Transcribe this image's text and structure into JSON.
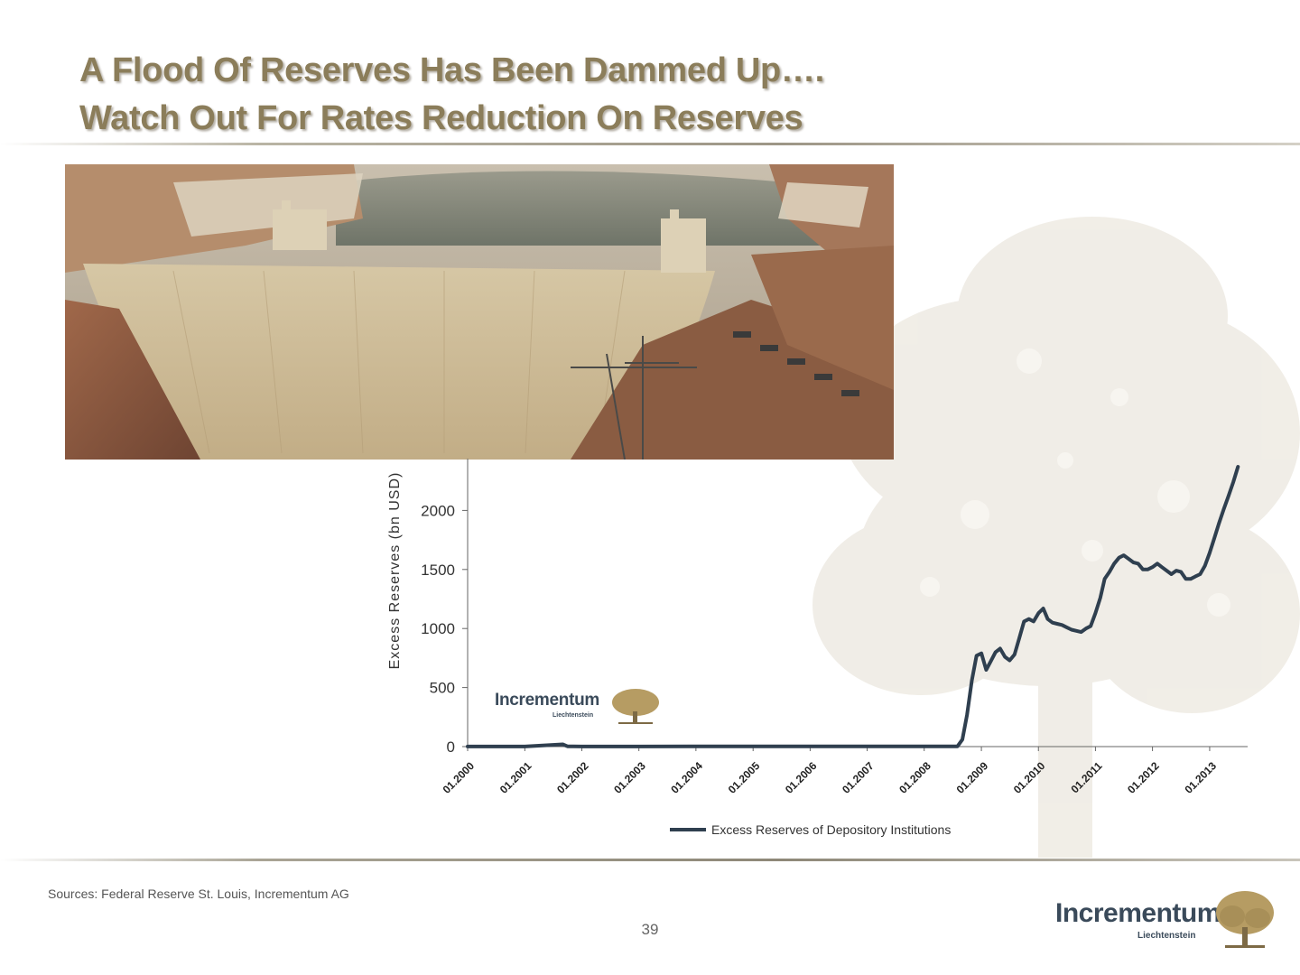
{
  "slide": {
    "title_line1": "A Flood Of Reserves Has Been Dammed Up….",
    "title_line2": "Watch Out For Rates Reduction On Reserves",
    "source": "Sources: Federal Reserve St. Louis, Incrementum AG",
    "page_number": "39"
  },
  "logo": {
    "word": "Incrementum",
    "sub": "Liechtenstein"
  },
  "chart_logo": {
    "word": "Incrementum",
    "sub": "Liechtenstein"
  },
  "colors": {
    "title": "#8b7d5a",
    "series": "#2f3f4f",
    "axis": "#333333"
  },
  "chart_data": {
    "type": "line",
    "title": "",
    "ylabel": "Excess Reserves (bn USD)",
    "xlabel": "",
    "ylim": [
      0,
      2500
    ],
    "yticks": [
      0,
      500,
      1000,
      1500,
      2000
    ],
    "x_tick_labels": [
      "01.2000",
      "01.2001",
      "01.2002",
      "01.2003",
      "01.2004",
      "01.2005",
      "01.2006",
      "01.2007",
      "01.2008",
      "01.2009",
      "01.2010",
      "01.2011",
      "01.2012",
      "01.2013"
    ],
    "legend_position": "bottom",
    "series": [
      {
        "name": "Excess Reserves of Depository Institutions",
        "points": [
          [
            "2000-01",
            1
          ],
          [
            "2001-01",
            1
          ],
          [
            "2001-09",
            19
          ],
          [
            "2001-10",
            2
          ],
          [
            "2002-01",
            1
          ],
          [
            "2003-01",
            1
          ],
          [
            "2004-01",
            2
          ],
          [
            "2005-01",
            2
          ],
          [
            "2006-01",
            2
          ],
          [
            "2007-01",
            2
          ],
          [
            "2008-01",
            2
          ],
          [
            "2008-08",
            2
          ],
          [
            "2008-09",
            60
          ],
          [
            "2008-10",
            270
          ],
          [
            "2008-11",
            560
          ],
          [
            "2008-12",
            770
          ],
          [
            "2009-01",
            790
          ],
          [
            "2009-02",
            650
          ],
          [
            "2009-03",
            720
          ],
          [
            "2009-04",
            800
          ],
          [
            "2009-05",
            830
          ],
          [
            "2009-06",
            760
          ],
          [
            "2009-07",
            730
          ],
          [
            "2009-08",
            780
          ],
          [
            "2009-09",
            920
          ],
          [
            "2009-10",
            1060
          ],
          [
            "2009-11",
            1080
          ],
          [
            "2009-12",
            1060
          ],
          [
            "2010-01",
            1130
          ],
          [
            "2010-02",
            1170
          ],
          [
            "2010-03",
            1080
          ],
          [
            "2010-04",
            1050
          ],
          [
            "2010-05",
            1040
          ],
          [
            "2010-06",
            1030
          ],
          [
            "2010-07",
            1010
          ],
          [
            "2010-08",
            990
          ],
          [
            "2010-09",
            980
          ],
          [
            "2010-10",
            970
          ],
          [
            "2010-11",
            1000
          ],
          [
            "2010-12",
            1020
          ],
          [
            "2011-01",
            1130
          ],
          [
            "2011-02",
            1260
          ],
          [
            "2011-03",
            1420
          ],
          [
            "2011-04",
            1480
          ],
          [
            "2011-05",
            1550
          ],
          [
            "2011-06",
            1600
          ],
          [
            "2011-07",
            1620
          ],
          [
            "2011-08",
            1590
          ],
          [
            "2011-09",
            1560
          ],
          [
            "2011-10",
            1550
          ],
          [
            "2011-11",
            1500
          ],
          [
            "2011-12",
            1500
          ],
          [
            "2012-01",
            1520
          ],
          [
            "2012-02",
            1550
          ],
          [
            "2012-03",
            1520
          ],
          [
            "2012-04",
            1490
          ],
          [
            "2012-05",
            1460
          ],
          [
            "2012-06",
            1490
          ],
          [
            "2012-07",
            1480
          ],
          [
            "2012-08",
            1420
          ],
          [
            "2012-09",
            1420
          ],
          [
            "2012-10",
            1440
          ],
          [
            "2012-11",
            1460
          ],
          [
            "2012-12",
            1530
          ],
          [
            "2013-01",
            1640
          ],
          [
            "2013-02",
            1770
          ],
          [
            "2013-03",
            1890
          ],
          [
            "2013-04",
            2010
          ],
          [
            "2013-05",
            2120
          ],
          [
            "2013-06",
            2240
          ],
          [
            "2013-07",
            2370
          ]
        ]
      }
    ]
  }
}
